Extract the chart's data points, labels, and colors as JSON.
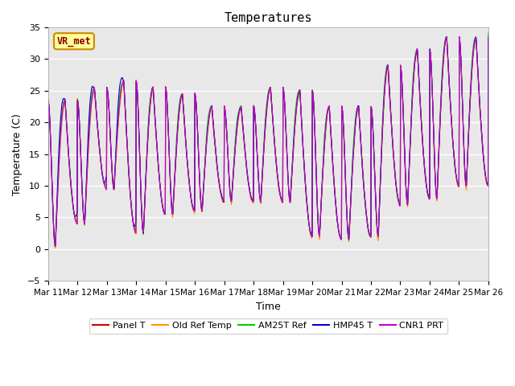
{
  "title": "Temperatures",
  "xlabel": "Time",
  "ylabel": "Temperature (C)",
  "ylim": [
    -5,
    35
  ],
  "yticks": [
    -5,
    0,
    5,
    10,
    15,
    20,
    25,
    30,
    35
  ],
  "x_labels": [
    "Mar 11",
    "Mar 12",
    "Mar 13",
    "Mar 14",
    "Mar 15",
    "Mar 16",
    "Mar 17",
    "Mar 18",
    "Mar 19",
    "Mar 20",
    "Mar 21",
    "Mar 22",
    "Mar 23",
    "Mar 24",
    "Mar 25",
    "Mar 26"
  ],
  "annotation_text": "VR_met",
  "bg_color": "#e8e8e8",
  "fig_bg": "#ffffff",
  "grid_color": "#ffffff",
  "num_days": 15,
  "pts_per_day": 144,
  "day_peak_temps": [
    23.5,
    25.5,
    26.5,
    25.5,
    24.5,
    22.5,
    22.5,
    25.5,
    25.0,
    22.5,
    22.5,
    29.0,
    31.5,
    33.5,
    33.5
  ],
  "day_min_temps": [
    0.5,
    4.0,
    9.5,
    2.5,
    5.5,
    6.0,
    7.5,
    7.5,
    7.5,
    2.0,
    1.5,
    2.0,
    7.0,
    8.0,
    10.0
  ],
  "series_names": [
    "Panel T",
    "Old Ref Temp",
    "AM25T Ref",
    "HMP45 T",
    "CNR1 PRT"
  ],
  "series_colors": [
    "#cc0000",
    "#ff9900",
    "#00cc00",
    "#0000cc",
    "#cc00cc"
  ]
}
